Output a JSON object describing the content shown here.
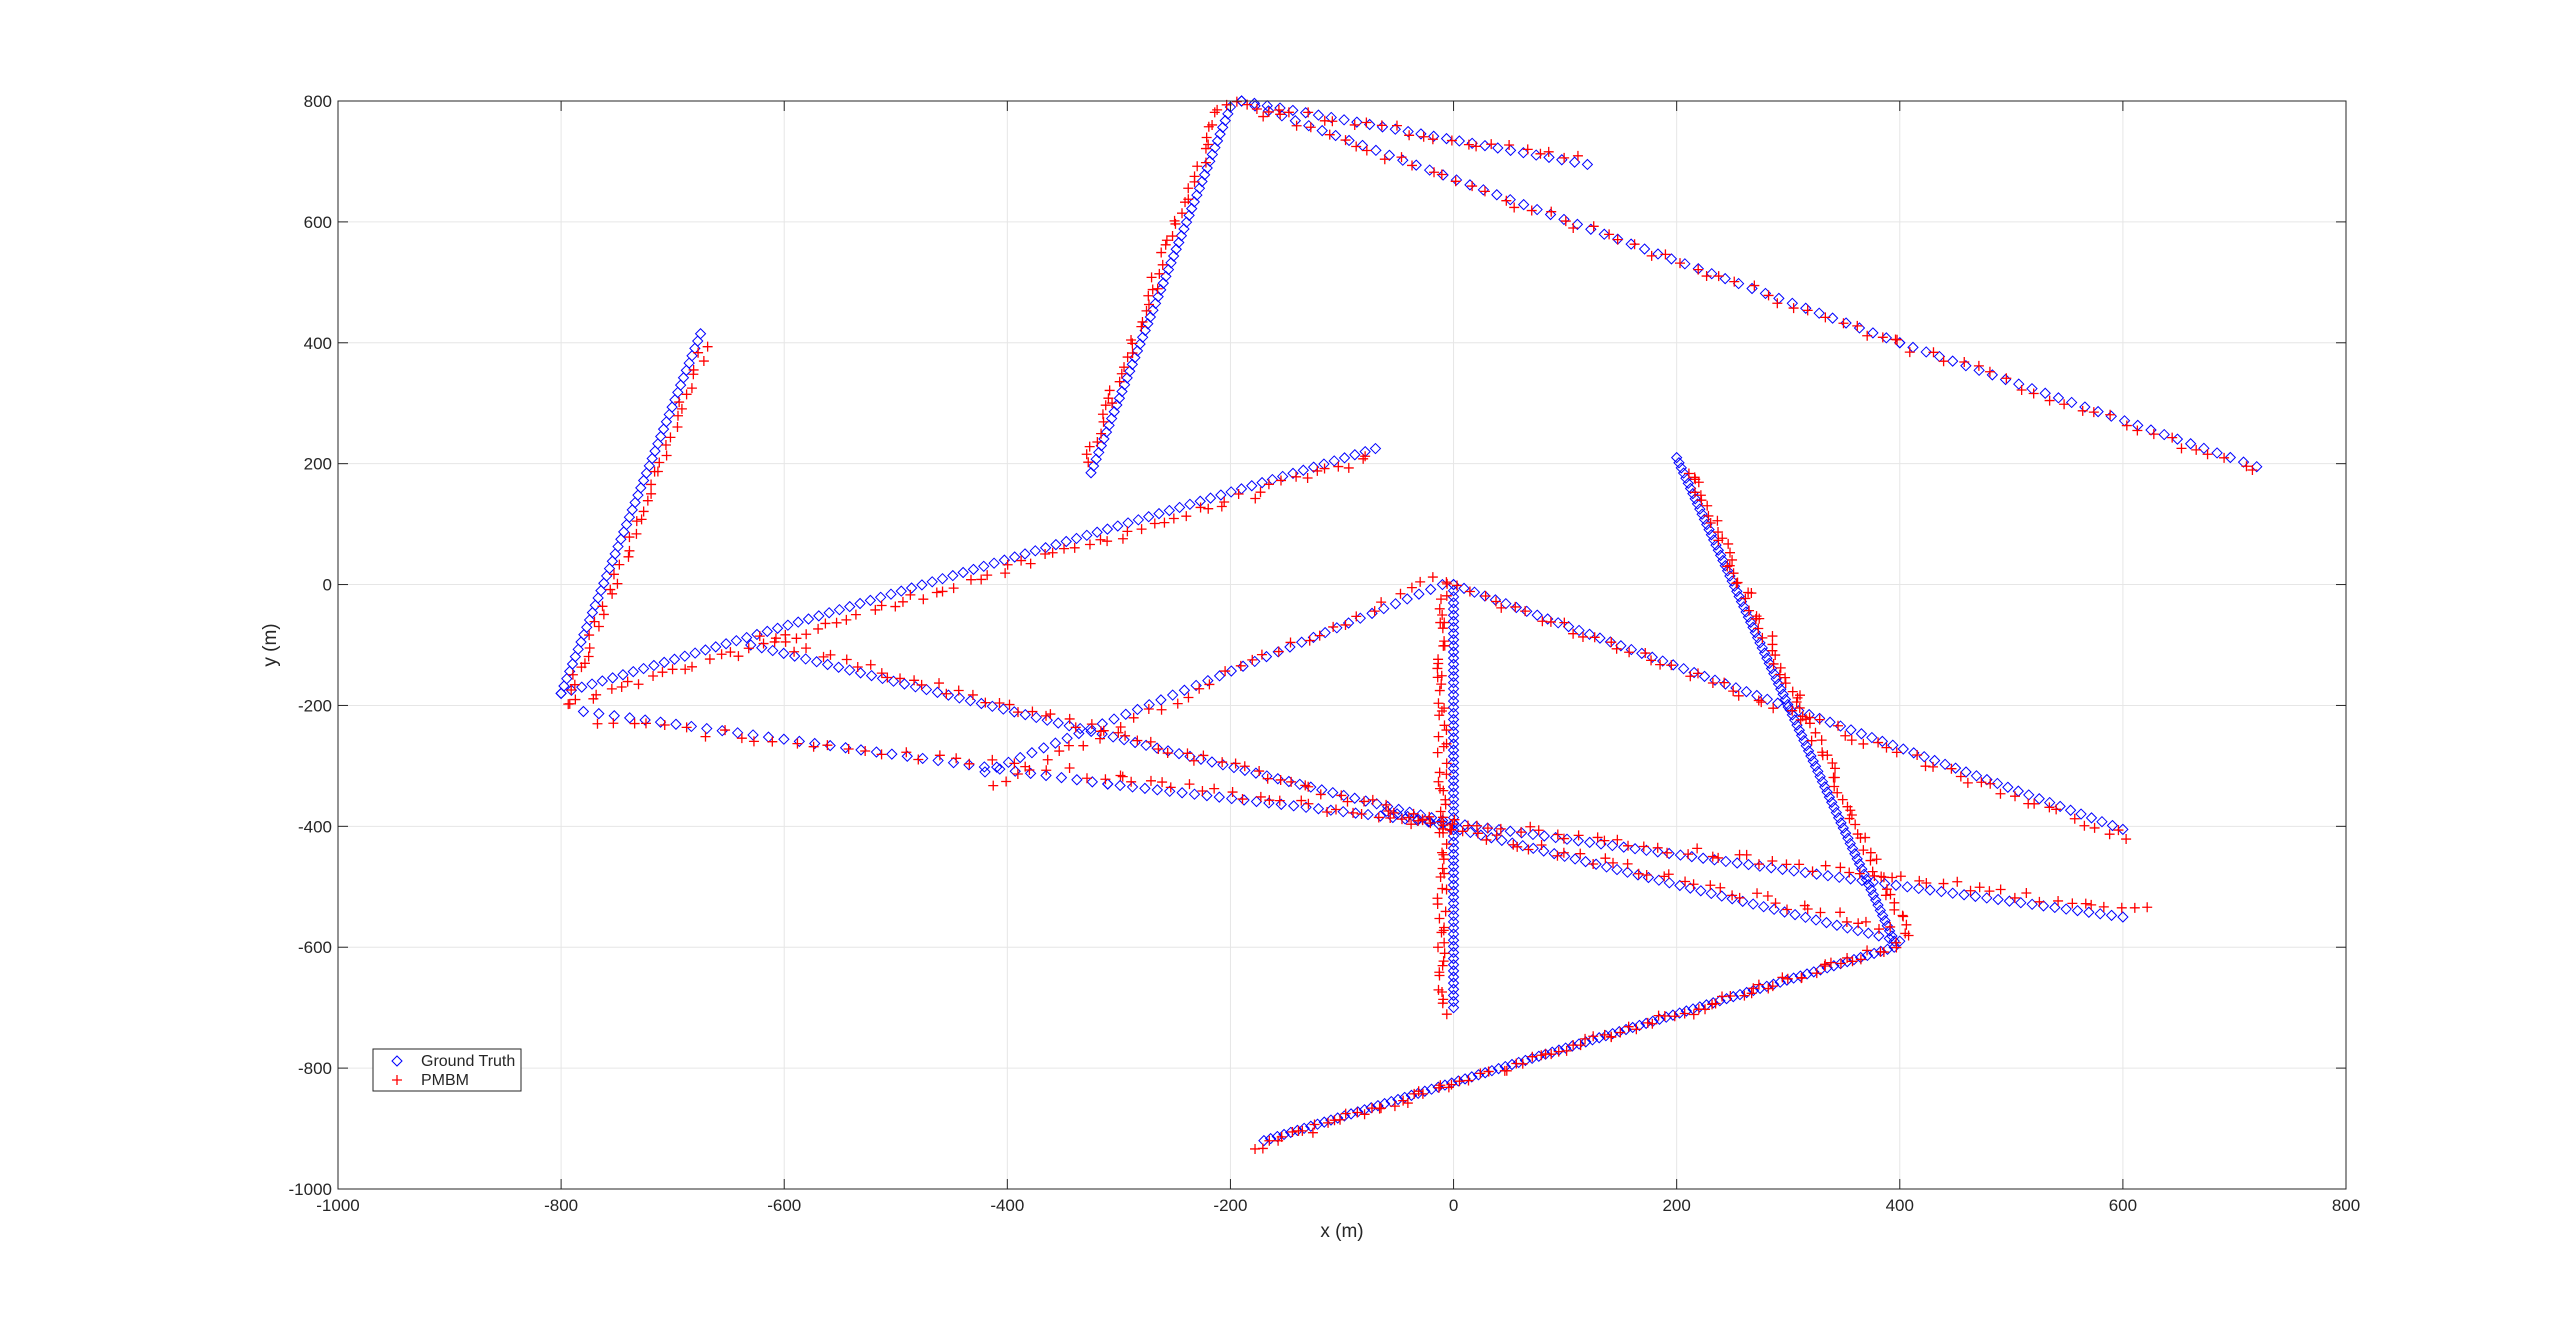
{
  "chart_data": {
    "type": "scatter",
    "xlabel": "x (m)",
    "ylabel": "y (m)",
    "xlim": [
      -1000,
      800
    ],
    "ylim": [
      -1000,
      800
    ],
    "xticks": [
      -1000,
      -800,
      -600,
      -400,
      -200,
      0,
      200,
      400,
      600,
      800
    ],
    "yticks": [
      -1000,
      -800,
      -600,
      -400,
      -200,
      0,
      200,
      400,
      600,
      800
    ],
    "grid": true,
    "legend_position": "bottom-left",
    "series": [
      {
        "name": "Ground Truth",
        "marker": "diamond",
        "color": "#0000ff",
        "segments": [
          {
            "from": [
              -800,
              -180
            ],
            "to": [
              -675,
              415
            ],
            "n": 50
          },
          {
            "from": [
              -800,
              -180
            ],
            "to": [
              -70,
              225
            ],
            "n": 80
          },
          {
            "from": [
              -630,
              -100
            ],
            "to": [
              0,
              -395
            ],
            "n": 65
          },
          {
            "from": [
              0,
              -395
            ],
            "to": [
              600,
              -550
            ],
            "n": 60
          },
          {
            "from": [
              -420,
              -310
            ],
            "to": [
              -10,
              0
            ],
            "n": 40
          },
          {
            "from": [
              -780,
              -210
            ],
            "to": [
              -310,
              -330
            ],
            "n": 35
          },
          {
            "from": [
              -310,
              -330
            ],
            "to": [
              -10,
              -395
            ],
            "n": 28
          },
          {
            "from": [
              -325,
              185
            ],
            "to": [
              -200,
              790
            ],
            "n": 55
          },
          {
            "from": [
              -190,
              800
            ],
            "to": [
              120,
              695
            ],
            "n": 28
          },
          {
            "from": [
              -190,
              800
            ],
            "to": [
              400,
              400
            ],
            "n": 50
          },
          {
            "from": [
              400,
              400
            ],
            "to": [
              720,
              195
            ],
            "n": 28
          },
          {
            "from": [
              0,
              -700
            ],
            "to": [
              0,
              0
            ],
            "n": 70
          },
          {
            "from": [
              0,
              0
            ],
            "to": [
              600,
              -405
            ],
            "n": 65
          },
          {
            "from": [
              200,
              210
            ],
            "to": [
              395,
              -590
            ],
            "n": 95
          },
          {
            "from": [
              -170,
              -920
            ],
            "to": [
              395,
              -600
            ],
            "n": 95
          },
          {
            "from": [
              -60,
              -375
            ],
            "to": [
              400,
              -590
            ],
            "n": 50
          }
        ]
      },
      {
        "name": "PMBM",
        "marker": "plus",
        "color": "#ff0000",
        "segments": [
          {
            "from": [
              -795,
              -195
            ],
            "to": [
              -670,
              395
            ],
            "n": 45
          },
          {
            "from": [
              -795,
              -200
            ],
            "to": [
              -75,
              210
            ],
            "n": 75
          },
          {
            "from": [
              -620,
              -90
            ],
            "to": [
              0,
              -400
            ],
            "n": 60
          },
          {
            "from": [
              0,
              -390
            ],
            "to": [
              620,
              -540
            ],
            "n": 55
          },
          {
            "from": [
              -415,
              -330
            ],
            "to": [
              -15,
              10
            ],
            "n": 35
          },
          {
            "from": [
              -770,
              -225
            ],
            "to": [
              -300,
              -320
            ],
            "n": 30
          },
          {
            "from": [
              -300,
              -320
            ],
            "to": [
              -5,
              -400
            ],
            "n": 25
          },
          {
            "from": [
              -330,
              205
            ],
            "to": [
              -205,
              800
            ],
            "n": 50
          },
          {
            "from": [
              -195,
              795
            ],
            "to": [
              115,
              705
            ],
            "n": 25
          },
          {
            "from": [
              -180,
              790
            ],
            "to": [
              400,
              400
            ],
            "n": 45
          },
          {
            "from": [
              400,
              400
            ],
            "to": [
              720,
              185
            ],
            "n": 25
          },
          {
            "from": [
              -10,
              -705
            ],
            "to": [
              -10,
              5
            ],
            "n": 70
          },
          {
            "from": [
              5,
              -5
            ],
            "to": [
              605,
              -420
            ],
            "n": 60
          },
          {
            "from": [
              210,
              190
            ],
            "to": [
              405,
              -570
            ],
            "n": 85
          },
          {
            "from": [
              -180,
              -930
            ],
            "to": [
              400,
              -595
            ],
            "n": 90
          },
          {
            "from": [
              -55,
              -380
            ],
            "to": [
              405,
              -575
            ],
            "n": 45
          }
        ]
      }
    ]
  }
}
